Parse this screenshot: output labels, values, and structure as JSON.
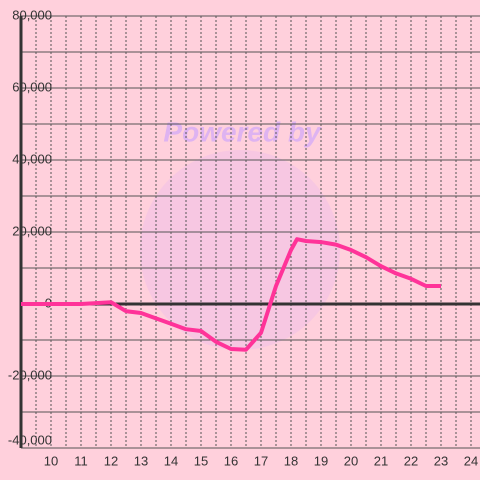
{
  "chart_data": {
    "type": "line",
    "watermark": "Powered by",
    "x": [
      9,
      10,
      11,
      12,
      12.5,
      13,
      13.5,
      14,
      14.5,
      15,
      15.5,
      16,
      16.5,
      17,
      17.5,
      18,
      18.2,
      18.5,
      19,
      19.5,
      20,
      20.5,
      21,
      21.5,
      22,
      22.5,
      23
    ],
    "series": [
      {
        "color": "#ff3399",
        "values": [
          0,
          0,
          0,
          500,
          -2000,
          -2500,
          -4000,
          -5500,
          -7000,
          -7500,
          -10500,
          -12500,
          -12700,
          -8000,
          5000,
          15000,
          18000,
          17500,
          17200,
          16500,
          15000,
          13000,
          10500,
          8500,
          7000,
          5000,
          5000
        ]
      }
    ],
    "xlim": [
      9,
      24.3
    ],
    "xticks": [
      10,
      11,
      12,
      13,
      14,
      15,
      16,
      17,
      18,
      19,
      20,
      21,
      22,
      23,
      24
    ],
    "x_minor_ticks": [
      9.5,
      10.5,
      11.5,
      12.5,
      13.5,
      14.5,
      15.5,
      16.5,
      17.5,
      18.5,
      19.5,
      20.5,
      21.5,
      22.5,
      23.5
    ],
    "ylim": [
      -40000,
      80000
    ],
    "yticks": [
      {
        "value": -40000,
        "label": "-40,000"
      },
      {
        "value": -20000,
        "label": "-20,000"
      },
      0,
      {
        "value": 20000,
        "label": "20,000"
      },
      {
        "value": 40000,
        "label": "40,000"
      },
      {
        "value": 60000,
        "label": "60,000"
      },
      {
        "value": 80000,
        "label": "80,000"
      }
    ],
    "y_minor_ticks": [
      -30000,
      -10000,
      10000,
      30000,
      50000,
      70000
    ],
    "grid": true
  }
}
